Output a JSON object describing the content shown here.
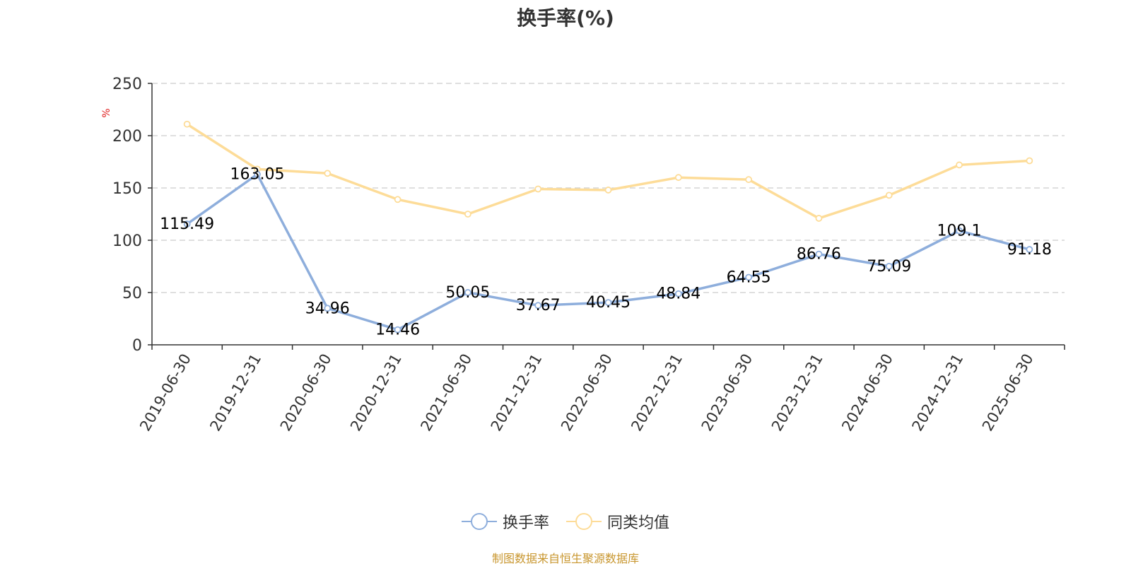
{
  "title": "换手率(%)",
  "source": "制图数据来自恒生聚源数据库",
  "colors": {
    "series1": "#8eaedc",
    "series2": "#fddc98",
    "grid": "#cccccc",
    "axis": "#333333",
    "unit": "#e02020"
  },
  "chart_data": {
    "type": "line",
    "title": "换手率(%)",
    "ylabel": "%",
    "ylim": [
      0,
      250
    ],
    "yticks": [
      0,
      50,
      100,
      150,
      200,
      250
    ],
    "grid": true,
    "legend_position": "bottom",
    "categories": [
      "2019-06-30",
      "2019-12-31",
      "2020-06-30",
      "2020-12-31",
      "2021-06-30",
      "2021-12-31",
      "2022-06-30",
      "2022-12-31",
      "2023-06-30",
      "2023-12-31",
      "2024-06-30",
      "2024-12-31",
      "2025-06-30"
    ],
    "series": [
      {
        "name": "换手率",
        "values": [
          115.49,
          163.05,
          34.96,
          14.46,
          50.05,
          37.67,
          40.45,
          48.84,
          64.55,
          86.76,
          75.09,
          109.1,
          91.18
        ],
        "labels": [
          "115.49",
          "163.05",
          "34.96",
          "14.46",
          "50.05",
          "37.67",
          "40.45",
          "48.84",
          "64.55",
          "86.76",
          "75.09",
          "109.1",
          "91.18"
        ]
      },
      {
        "name": "同类均值",
        "values": [
          211,
          168,
          164,
          139,
          125,
          149,
          148,
          160,
          158,
          121,
          143,
          172,
          176
        ]
      }
    ]
  }
}
